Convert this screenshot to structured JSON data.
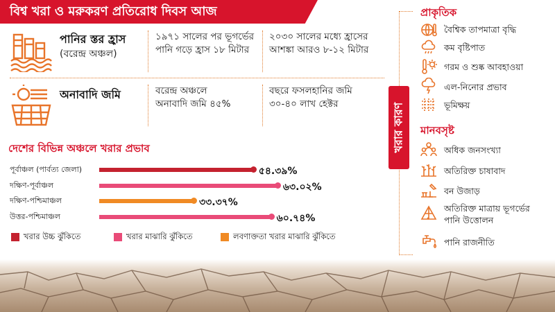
{
  "title": "বিশ্ব খরা ও মরুকরণ প্রতিরোধ দিবস আজ",
  "stats": [
    {
      "heading": "পানির স্তর হ্রাস",
      "subheading": "(বরেন্দ্র অঞ্চল)",
      "col1": "১৯৭১ সালের পর ভূগর্ভের পানি গড়ে হ্রাস ১৮ মিটার",
      "col2": "২০৩০ সালের মধ্যে হ্রাসের আশঙ্কা আরও ৮-১২ মিটার",
      "icon": "water-level-icon"
    },
    {
      "heading": "অনাবাদি জমি",
      "subheading": "",
      "col1": "বরেন্দ্র অঞ্চলে অনাবাদি জমি ৪৫%",
      "col2": "বছরে ফসলহানির জমি ৩০-৪০ লাখ হেক্টর",
      "icon": "barren-land-icon"
    }
  ],
  "chart_title": "দেশের বিভিন্ন অঞ্চলে খরার প্রভাব",
  "chart_data": {
    "type": "bar",
    "title": "দেশের বিভিন্ন অঞ্চলে খরার প্রভাব",
    "categories": [
      "পূর্বাঞ্চল (পার্বত্য জেলা)",
      "দক্ষিণ-পূর্বাঞ্চল",
      "দক্ষিণ-পশ্চিমাঞ্চল",
      "উত্তর-পশ্চিমাঞ্চল"
    ],
    "values": [
      54.39,
      63.02,
      33.37,
      60.74
    ],
    "labels": [
      "৫৪.৩৯%",
      "৬৩.০২%",
      "৩৩.৩৭%",
      "৬০.৭৪%"
    ],
    "risk": [
      "high",
      "moderate",
      "salinity",
      "moderate"
    ],
    "xlim": [
      0,
      65
    ]
  },
  "legend": [
    {
      "label": "খরার উচ্চ ঝুঁকিতে",
      "color": "#c4222f"
    },
    {
      "label": "খরার মাঝারি ঝুঁকিতে",
      "color": "#e94b78"
    },
    {
      "label": "লবণাক্ততা খরার মাঝারি ঝুঁকিতে",
      "color": "#f08a24"
    }
  ],
  "colors": {
    "high": "#c4222f",
    "moderate": "#e94b78",
    "salinity": "#f08a24",
    "accent": "#d7142c"
  },
  "side_label": "খরার কারণ",
  "natural_heading": "প্রাকৃতিক",
  "natural_causes": [
    {
      "label": "বৈশ্বিক তাপমাত্রা বৃদ্ধি",
      "icon": "globe-thermometer-icon"
    },
    {
      "label": "কম বৃষ্টিপাত",
      "icon": "cloud-rain-icon"
    },
    {
      "label": "গরম ও শুষ্ক আবহাওয়া",
      "icon": "thermometer-sun-icon"
    },
    {
      "label": "এল-নিনোর প্রভাব",
      "icon": "storm-cloud-icon"
    },
    {
      "label": "ভূমিক্ষয়",
      "icon": "erosion-icon"
    }
  ],
  "human_heading": "মানবসৃষ্ট",
  "human_causes": [
    {
      "label": "অধিক জনসংখ্যা",
      "icon": "population-icon"
    },
    {
      "label": "অতিরিক্ত চাষাবাদ",
      "icon": "crops-icon"
    },
    {
      "label": "বন উজাড়",
      "icon": "deforestation-icon"
    },
    {
      "label": "অতিরিক্ত মাত্রায় ভূগর্ভের পানি উত্তোলন",
      "icon": "water-pump-icon"
    },
    {
      "label": "পানি রাজনীতি",
      "icon": "water-tap-icon"
    }
  ]
}
